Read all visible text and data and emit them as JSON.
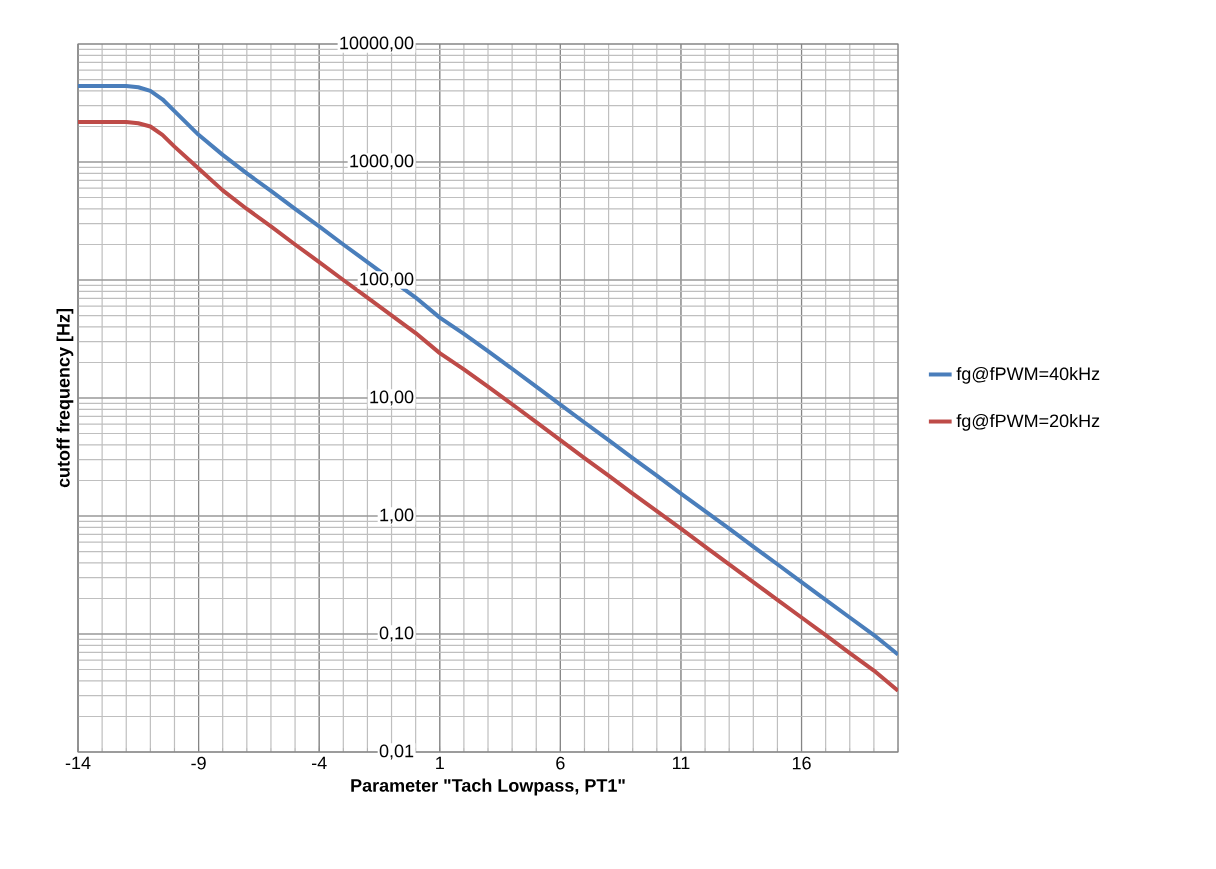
{
  "chart_data": {
    "type": "line",
    "xlabel": "Parameter \"Tach Lowpass, PT1\"",
    "ylabel": "cutoff frequency [Hz]",
    "x": [
      -14,
      -13,
      -12,
      -11.5,
      -11,
      -10.5,
      -10,
      -9,
      -8,
      -7,
      -6,
      -5,
      -4,
      -3,
      -2,
      0,
      1,
      2,
      3,
      4,
      5,
      6,
      7,
      8,
      9,
      10,
      11,
      12,
      13,
      14,
      15,
      16,
      17,
      18,
      19,
      20
    ],
    "series": [
      {
        "name": "fg@fPWM=40kHz",
        "color": "#4a7ebb",
        "values": [
          4400,
          4400,
          4400,
          4300,
          4000,
          3400,
          2700,
          1700,
          1150,
          800,
          570,
          400,
          285,
          200,
          142,
          71,
          48,
          35,
          25,
          17.7,
          12.5,
          8.8,
          6.2,
          4.4,
          3.1,
          2.2,
          1.55,
          1.1,
          0.78,
          0.55,
          0.39,
          0.275,
          0.195,
          0.138,
          0.098,
          0.067
        ]
      },
      {
        "name": "fg@fPWM=20kHz",
        "color": "#be4b48",
        "values": [
          2180,
          2180,
          2180,
          2130,
          2000,
          1700,
          1350,
          880,
          575,
          400,
          285,
          200,
          142,
          100,
          71,
          35.5,
          24,
          17.5,
          12.5,
          8.85,
          6.25,
          4.4,
          3.1,
          2.2,
          1.55,
          1.1,
          0.78,
          0.55,
          0.39,
          0.275,
          0.195,
          0.138,
          0.098,
          0.069,
          0.049,
          0.033
        ]
      }
    ],
    "xlim": [
      -14,
      20
    ],
    "xticks": [
      -14,
      -9,
      -4,
      1,
      6,
      11,
      16
    ],
    "ylim": [
      0.01,
      10000
    ],
    "yticks": [
      {
        "value": 0.01,
        "label": "0,01"
      },
      {
        "value": 0.1,
        "label": "0,10"
      },
      {
        "value": 1,
        "label": "1,00"
      },
      {
        "value": 10,
        "label": "10,00"
      },
      {
        "value": 100,
        "label": "100,00"
      },
      {
        "value": 1000,
        "label": "1000,00"
      },
      {
        "value": 10000,
        "label": "10000,00"
      }
    ],
    "log": "y",
    "grid": true,
    "legend": "right"
  }
}
